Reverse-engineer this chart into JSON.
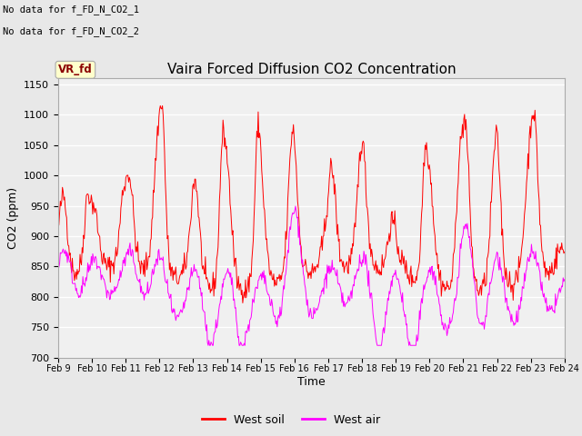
{
  "title": "Vaira Forced Diffusion CO2 Concentration",
  "ylabel": "CO2 (ppm)",
  "xlabel": "Time",
  "no_data_text_1": "No data for f_FD_N_CO2_1",
  "no_data_text_2": "No data for f_FD_N_CO2_2",
  "legend_label_text": "VR_fd",
  "legend_soil": "West soil",
  "legend_air": "West air",
  "soil_color": "#FF0000",
  "air_color": "#FF00FF",
  "ylim": [
    700,
    1160
  ],
  "yticks": [
    700,
    750,
    800,
    850,
    900,
    950,
    1000,
    1050,
    1100,
    1150
  ],
  "bg_color": "#E8E8E8",
  "plot_bg_color": "#F0F0F0",
  "grid_color": "#FFFFFF",
  "fig_width": 6.4,
  "fig_height": 4.8,
  "dpi": 100
}
